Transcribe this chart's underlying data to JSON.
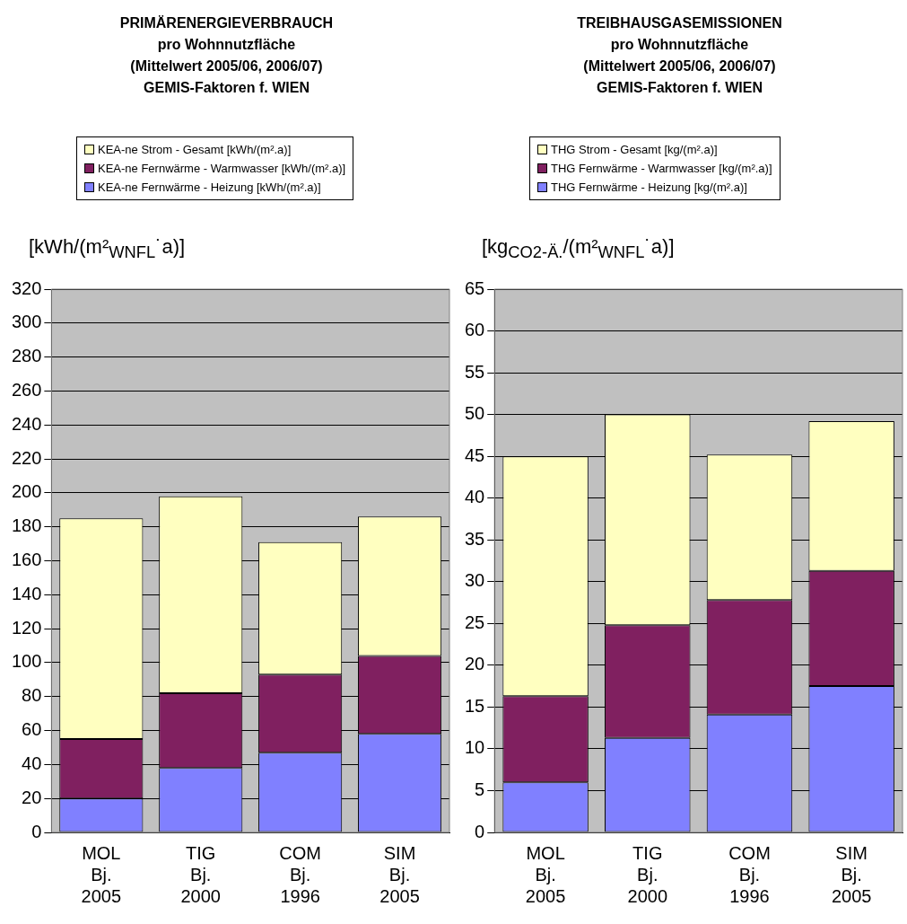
{
  "chart_data": [
    {
      "type": "bar",
      "title": "PRIMÄRENERGIEVERBRAUCH\npro Wohnnutzfläche\n(Mittelwert 2005/06, 2006/07)\nGEMIS-Faktoren f. WIEN",
      "ylabel": "[kWh/(m²$_{WNFL}$˙a)]",
      "categories": [
        "MOL\nBj.\n2005",
        "TIG\nBj.\n2000",
        "COM\nBj.\n1996",
        "SIM\nBj.\n2005"
      ],
      "stacked": true,
      "grid": "y",
      "legend": "top",
      "ylim": [
        0,
        320
      ],
      "yticks": [
        0,
        20,
        40,
        60,
        80,
        100,
        120,
        140,
        160,
        180,
        200,
        220,
        240,
        260,
        280,
        300,
        320
      ],
      "series": [
        {
          "name": "KEA-ne Fernwärme - Heizung [kWh/(m².a)]",
          "color": "#8080ff",
          "values": [
            20,
            38,
            47,
            58
          ]
        },
        {
          "name": "KEA-ne Fernwärme - Warmwasser [kWh/(m².a)]",
          "color": "#802060",
          "values": [
            35,
            44,
            46,
            46
          ]
        },
        {
          "name": "KEA-ne Strom - Gesamt [kWh/(m².a)]",
          "color": "#ffffc0",
          "values": [
            130,
            116,
            78,
            82
          ]
        }
      ]
    },
    {
      "type": "bar",
      "title": "TREIBHAUSGASEMISSIONEN\npro Wohnnutzfläche\n(Mittelwert 2005/06, 2006/07)\nGEMIS-Faktoren f. WIEN",
      "ylabel": "[kg$_{CO2-Ä.}$/(m²$_{WNFL}$˙a)]",
      "categories": [
        "MOL\nBj.\n2005",
        "TIG\nBj.\n2000",
        "COM\nBj.\n1996",
        "SIM\nBj.\n2005"
      ],
      "stacked": true,
      "grid": "y",
      "legend": "top",
      "ylim": [
        0,
        65
      ],
      "yticks": [
        0,
        5,
        10,
        15,
        20,
        25,
        30,
        35,
        40,
        45,
        50,
        55,
        60,
        65
      ],
      "series": [
        {
          "name": "THG Fernwärme - Heizung [kg/(m².a)]",
          "color": "#8080ff",
          "values": [
            6,
            11.3,
            14.1,
            17.5
          ]
        },
        {
          "name": "THG Fernwärme - Warmwasser [kg/(m².a)]",
          "color": "#802060",
          "values": [
            10.3,
            13.5,
            13.7,
            13.8
          ]
        },
        {
          "name": "THG Strom - Gesamt [kg/(m².a)]",
          "color": "#ffffc0",
          "values": [
            28.7,
            25.2,
            17.4,
            17.9
          ]
        }
      ]
    }
  ]
}
